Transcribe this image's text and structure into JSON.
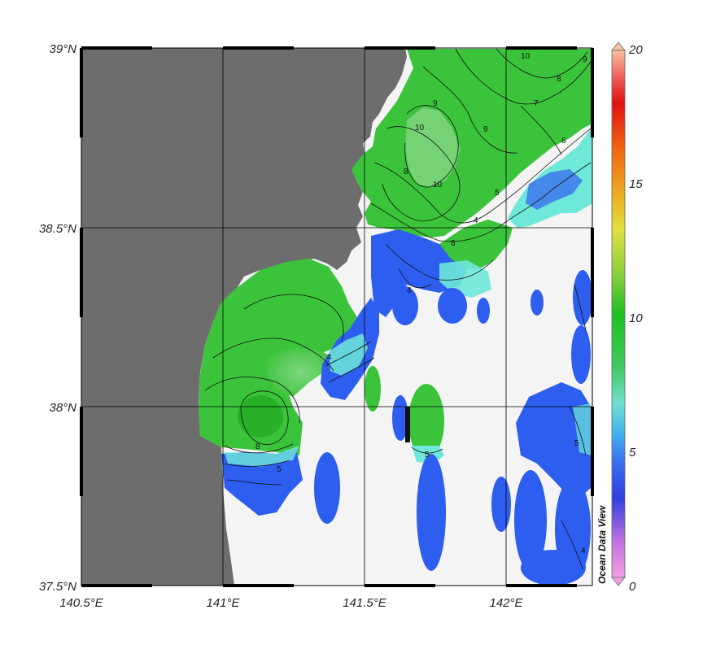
{
  "map": {
    "lat_labels": [
      "39°N",
      "38.5°N",
      "38°N",
      "37.5°N"
    ],
    "lon_labels": [
      "140.5°E",
      "141°E",
      "141.5°E",
      "142°E"
    ],
    "colorbar": {
      "ticks": [
        "20",
        "15",
        "10",
        "5",
        "0"
      ],
      "range": [
        0,
        20
      ],
      "colors": [
        "#f0a0e0",
        "#c070e0",
        "#3040e0",
        "#3a6ff0",
        "#40b0f0",
        "#70e0d0",
        "#40c860",
        "#20c020",
        "#90d040",
        "#e0e040",
        "#f0a020",
        "#f06010",
        "#e01010",
        "#f06060",
        "#f8c0a0"
      ]
    },
    "credit": "Ocean Data View",
    "contour_labels": [
      "10",
      "9",
      "8",
      "7",
      "6",
      "5",
      "4"
    ],
    "colors": {
      "land": "#6d6d6d",
      "nodata": "#f4f4f4",
      "green": "#3cc33c",
      "light_green": "#7fd67f",
      "blue": "#2e5ef0",
      "cyan": "#6ee8d8"
    }
  }
}
